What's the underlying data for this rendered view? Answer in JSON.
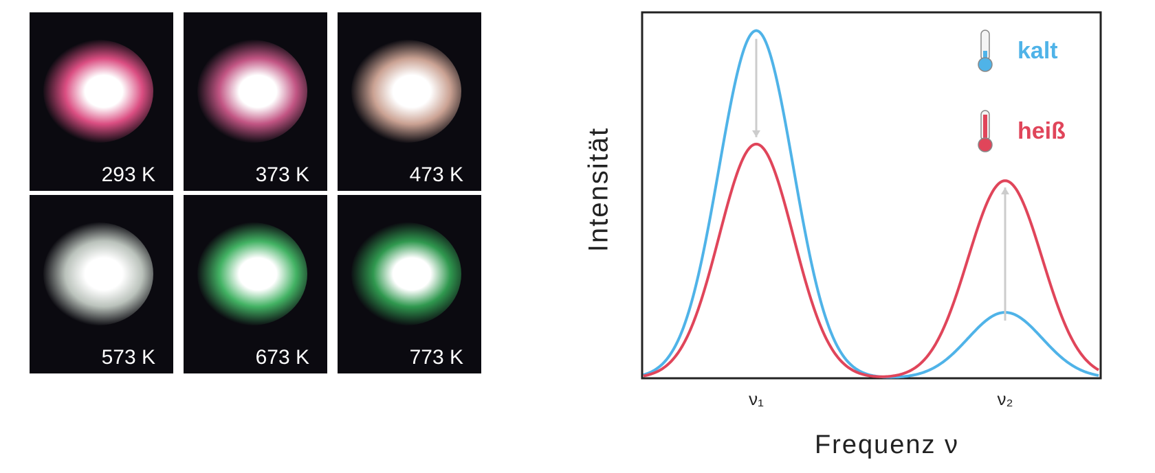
{
  "photos": {
    "labels": [
      "293 K",
      "373 K",
      "473 K",
      "573 K",
      "673 K",
      "773 K"
    ]
  },
  "chart_data": {
    "type": "line",
    "x_label": "Frequenz ν",
    "y_label": "Intensität",
    "categories": [
      "ν₁",
      "ν₂"
    ],
    "series": [
      {
        "name": "kalt",
        "color": "#4fb3e8",
        "values": [
          0.95,
          0.18
        ]
      },
      {
        "name": "heiß",
        "color": "#e0455a",
        "values": [
          0.64,
          0.54
        ]
      }
    ],
    "ylim": [
      0,
      1
    ],
    "legend": "upper right"
  }
}
